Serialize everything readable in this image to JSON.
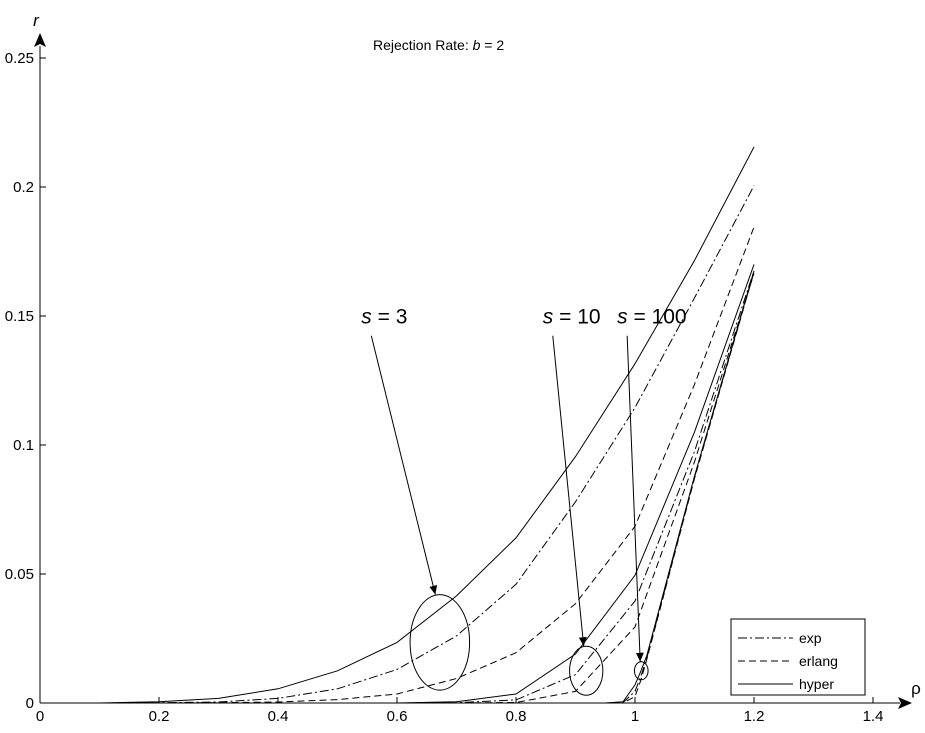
{
  "chart_data": {
    "type": "line",
    "title": "Rejection Rate:  b = 2",
    "title_prefix": "Rejection Rate:  ",
    "title_var": "b",
    "title_suffix": " = 2",
    "xlabel": "ρ",
    "ylabel": "r",
    "xlim": [
      0,
      1.45
    ],
    "ylim": [
      0,
      0.25
    ],
    "xticks": [
      0,
      0.2,
      0.4,
      0.6,
      0.8,
      1,
      1.2,
      1.4
    ],
    "xtick_labels": [
      "0",
      "0.2",
      "0.4",
      "0.6",
      "0.8",
      "1",
      "1.2",
      "1.4"
    ],
    "yticks": [
      0,
      0.05,
      0.1,
      0.15,
      0.2,
      0.25
    ],
    "ytick_labels": [
      "0",
      "0.05",
      "0.1",
      "0.15",
      "0.2",
      "0.25"
    ],
    "grid": false,
    "legend": {
      "placement": "bottom-right",
      "entries": [
        {
          "label": "exp",
          "style": "dashdot"
        },
        {
          "label": "erlang",
          "style": "dashed"
        },
        {
          "label": "hyper",
          "style": "solid"
        }
      ]
    },
    "series": [
      {
        "group": "s = 3",
        "style": "solid",
        "x": [
          0.1,
          0.2,
          0.3,
          0.4,
          0.5,
          0.6,
          0.7,
          0.8,
          0.9,
          1.0,
          1.1,
          1.2
        ],
        "y": [
          0,
          0.0005,
          0.0018,
          0.0055,
          0.0125,
          0.0235,
          0.0415,
          0.064,
          0.0955,
          0.1315,
          0.1715,
          0.2155
        ]
      },
      {
        "group": "s = 3",
        "style": "dashdot",
        "x": [
          0.1,
          0.2,
          0.3,
          0.4,
          0.5,
          0.6,
          0.7,
          0.8,
          0.9,
          1.0,
          1.1,
          1.2
        ],
        "y": [
          0,
          0.0001,
          0.0004,
          0.0018,
          0.0055,
          0.013,
          0.026,
          0.046,
          0.078,
          0.1145,
          0.157,
          0.2005
        ]
      },
      {
        "group": "s = 3",
        "style": "dashed",
        "x": [
          0.1,
          0.2,
          0.3,
          0.4,
          0.5,
          0.6,
          0.7,
          0.8,
          0.9,
          1.0,
          1.1,
          1.2
        ],
        "y": [
          0,
          0,
          0.0001,
          0.0004,
          0.0013,
          0.0035,
          0.0095,
          0.0195,
          0.0385,
          0.0685,
          0.1235,
          0.1845
        ]
      },
      {
        "group": "s = 10",
        "style": "solid",
        "x": [
          0.6,
          0.7,
          0.8,
          0.9,
          1.0,
          1.1,
          1.2
        ],
        "y": [
          0,
          0.0005,
          0.0035,
          0.019,
          0.0495,
          0.105,
          0.17
        ]
      },
      {
        "group": "s = 10",
        "style": "dashdot",
        "x": [
          0.6,
          0.7,
          0.8,
          0.9,
          1.0,
          1.1,
          1.2
        ],
        "y": [
          0,
          0.0001,
          0.0012,
          0.011,
          0.0395,
          0.0975,
          0.1675
        ]
      },
      {
        "group": "s = 10",
        "style": "dashed",
        "x": [
          0.6,
          0.7,
          0.8,
          0.9,
          1.0,
          1.1,
          1.2
        ],
        "y": [
          0,
          0,
          0.0002,
          0.0045,
          0.0295,
          0.0935,
          0.1665
        ]
      },
      {
        "group": "s = 100",
        "style": "solid",
        "x": [
          0.95,
          0.98,
          1.0,
          1.01,
          1.02,
          1.1,
          1.2
        ],
        "y": [
          0,
          0.0005,
          0.007,
          0.0125,
          0.0185,
          0.088,
          0.1675
        ]
      },
      {
        "group": "s = 100",
        "style": "dashdot",
        "x": [
          0.95,
          0.98,
          1.0,
          1.01,
          1.02,
          1.1,
          1.2
        ],
        "y": [
          0,
          0.0002,
          0.0045,
          0.0105,
          0.0175,
          0.0875,
          0.1672
        ]
      },
      {
        "group": "s = 100",
        "style": "dashed",
        "x": [
          0.95,
          0.98,
          1.0,
          1.01,
          1.02,
          1.1,
          1.2
        ],
        "y": [
          0,
          0,
          0.0025,
          0.009,
          0.017,
          0.087,
          0.167
        ]
      }
    ],
    "annotations": [
      {
        "var": "s",
        "eq": " = 3",
        "text_x": 0.54,
        "text_y": 0.147,
        "ellipse_cx": 0.672,
        "ellipse_cy": 0.0235,
        "ellipse_rx": 0.05,
        "ellipse_ry": 0.0185
      },
      {
        "var": "s",
        "eq": " = 10",
        "text_x": 0.845,
        "text_y": 0.147,
        "ellipse_cx": 0.918,
        "ellipse_cy": 0.0125,
        "ellipse_rx": 0.028,
        "ellipse_ry": 0.0095
      },
      {
        "var": "s",
        "eq": " = 100",
        "text_x": 0.97,
        "text_y": 0.147,
        "ellipse_cx": 1.0105,
        "ellipse_cy": 0.0125,
        "ellipse_rx": 0.0115,
        "ellipse_ry": 0.0035
      }
    ]
  }
}
